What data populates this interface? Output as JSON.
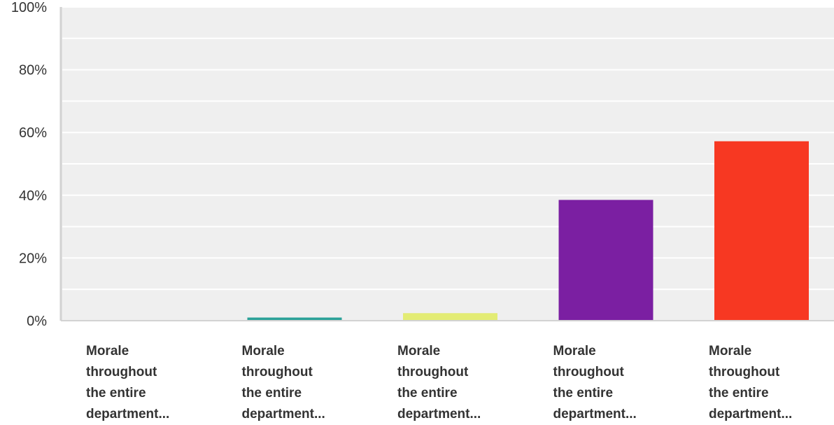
{
  "chart_data": {
    "type": "bar",
    "categories": [
      "Morale\nthroughout\nthe entire\ndepartment...",
      "Morale\nthroughout\nthe entire\ndepartment...",
      "Morale\nthroughout\nthe entire\ndepartment...",
      "Morale\nthroughout\nthe entire\ndepartment...",
      "Morale\nthroughout\nthe entire\ndepartment..."
    ],
    "values": [
      0,
      1.0,
      2.4,
      38.5,
      57.2
    ],
    "colors": [
      "#1f77b4",
      "#2aa198",
      "#e3ec74",
      "#7b1fa2",
      "#f73822"
    ],
    "ylim": [
      0,
      100
    ],
    "yticks": [
      "0%",
      "20%",
      "40%",
      "60%",
      "80%",
      "100%"
    ],
    "grid": true,
    "plot_background": "#efefef",
    "title": "",
    "xlabel": "",
    "ylabel": ""
  }
}
